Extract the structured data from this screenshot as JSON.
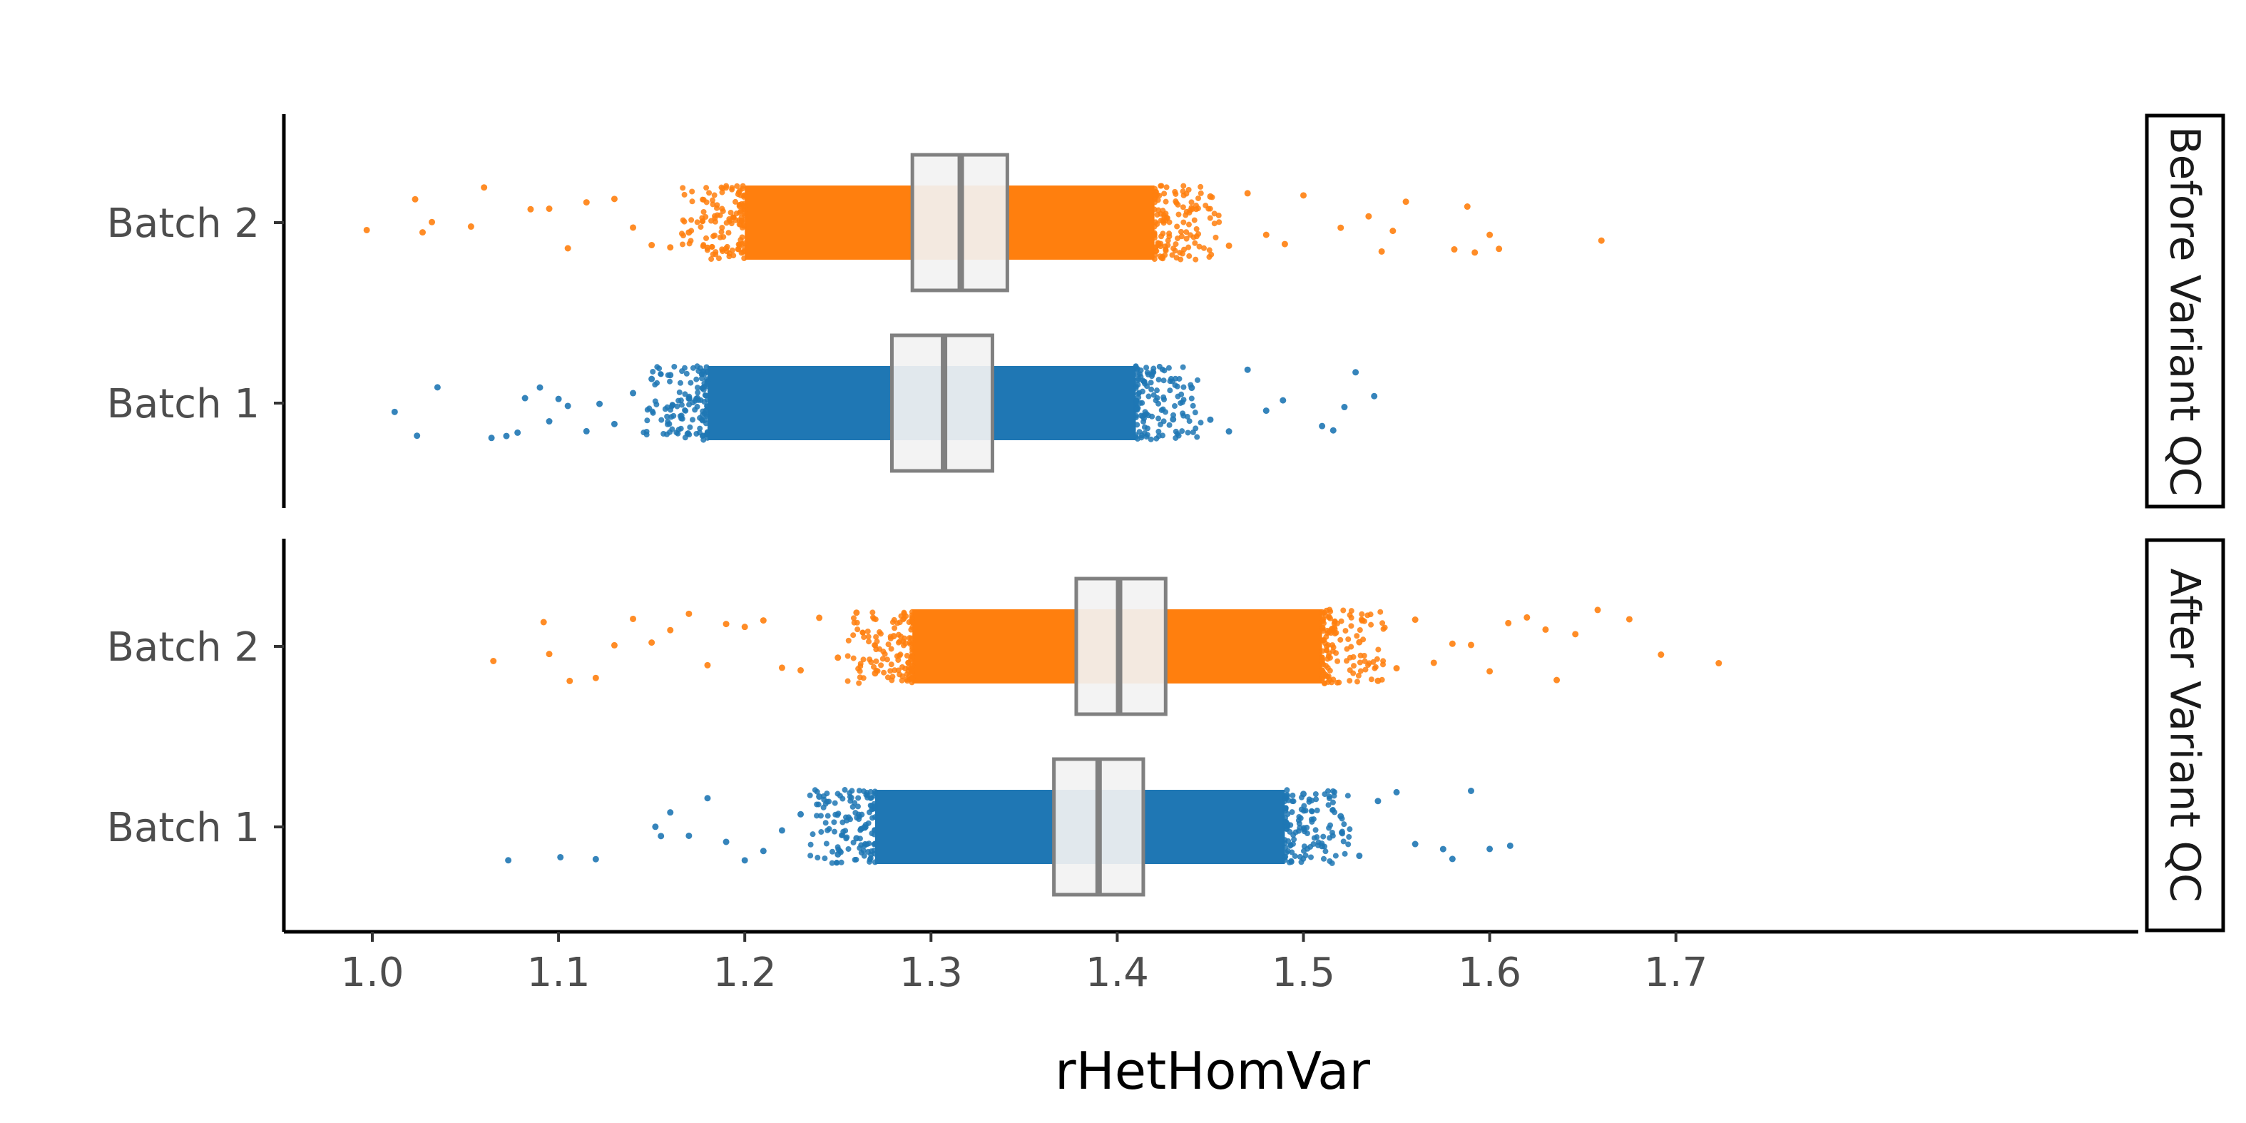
{
  "chart_data": {
    "type": "scatter",
    "subtype": "horizontal jitter strip plot with boxplots, faceted",
    "xlabel": "rHetHomVar",
    "ylabel": "",
    "title": "",
    "xlim": [
      0.96,
      1.76
    ],
    "xticks": [
      1.0,
      1.1,
      1.2,
      1.3,
      1.4,
      1.5,
      1.6,
      1.7
    ],
    "xtick_labels": [
      "1.0",
      "1.1",
      "1.2",
      "1.3",
      "1.4",
      "1.5",
      "1.6",
      "1.7"
    ],
    "categories": [
      "Batch 2",
      "Batch 1"
    ],
    "grid": false,
    "legend": "none",
    "colors": {
      "Batch 1": "#1f77b4",
      "Batch 2": "#ff7f0e",
      "box_fill": "#f2f2f2",
      "box_stroke": "#808080"
    },
    "facets": [
      {
        "label": "Before Variant QC",
        "series": [
          {
            "category": "Batch 2",
            "box": {
              "q1": 1.29,
              "median": 1.316,
              "q3": 1.341
            },
            "dense_range": [
              1.2,
              1.42
            ],
            "outliers": [
              0.997,
              1.023,
              1.027,
              1.032,
              1.053,
              1.06,
              1.085,
              1.095,
              1.105,
              1.115,
              1.13,
              1.14,
              1.15,
              1.16,
              1.17,
              1.18,
              1.45,
              1.46,
              1.47,
              1.48,
              1.49,
              1.5,
              1.52,
              1.535,
              1.542,
              1.548,
              1.555,
              1.581,
              1.588,
              1.592,
              1.6,
              1.605,
              1.66
            ]
          },
          {
            "category": "Batch 1",
            "box": {
              "q1": 1.279,
              "median": 1.307,
              "q3": 1.333
            },
            "dense_range": [
              1.18,
              1.41
            ],
            "outliers": [
              1.012,
              1.024,
              1.035,
              1.064,
              1.072,
              1.078,
              1.082,
              1.09,
              1.095,
              1.1,
              1.105,
              1.115,
              1.122,
              1.13,
              1.14,
              1.15,
              1.16,
              1.17,
              1.43,
              1.44,
              1.45,
              1.46,
              1.47,
              1.48,
              1.489,
              1.51,
              1.516,
              1.522,
              1.528,
              1.538
            ]
          }
        ]
      },
      {
        "label": "After Variant QC",
        "series": [
          {
            "category": "Batch 2",
            "box": {
              "q1": 1.378,
              "median": 1.401,
              "q3": 1.426
            },
            "dense_range": [
              1.29,
              1.51
            ],
            "outliers": [
              1.065,
              1.092,
              1.095,
              1.106,
              1.12,
              1.13,
              1.14,
              1.15,
              1.16,
              1.17,
              1.18,
              1.19,
              1.2,
              1.21,
              1.22,
              1.23,
              1.24,
              1.25,
              1.26,
              1.27,
              1.28,
              1.53,
              1.54,
              1.55,
              1.56,
              1.57,
              1.58,
              1.59,
              1.6,
              1.61,
              1.62,
              1.63,
              1.636,
              1.646,
              1.658,
              1.675,
              1.692,
              1.723
            ]
          },
          {
            "category": "Batch 1",
            "box": {
              "q1": 1.366,
              "median": 1.39,
              "q3": 1.414
            },
            "dense_range": [
              1.27,
              1.49
            ],
            "outliers": [
              1.073,
              1.101,
              1.12,
              1.152,
              1.155,
              1.16,
              1.17,
              1.18,
              1.19,
              1.2,
              1.21,
              1.22,
              1.23,
              1.24,
              1.25,
              1.26,
              1.5,
              1.51,
              1.52,
              1.53,
              1.54,
              1.55,
              1.56,
              1.575,
              1.58,
              1.59,
              1.6,
              1.611
            ]
          }
        ]
      }
    ]
  }
}
